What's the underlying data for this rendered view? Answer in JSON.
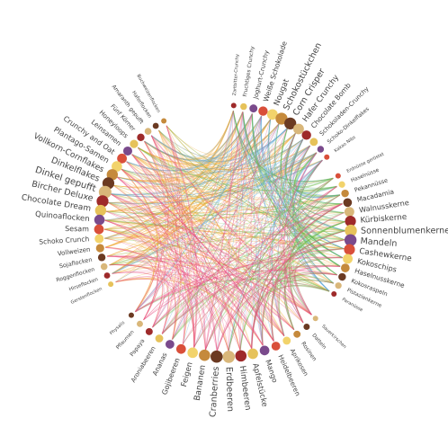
{
  "groups": [
    {
      "labels": [
        "Buchweizenflocken",
        "Haferflocken",
        "Amaranth gepufft",
        "Fünf Körner",
        "Honeyloops",
        "Leinsamen",
        "Crunchy and Oat",
        "Plantago-Samen",
        "Vollkorn-Cornflakes",
        "Dinkelflakes",
        "Dinkel gepufft",
        "Bircher Deluxe",
        "Chocolate Dream",
        "Quinoaflocken",
        "Sesam",
        "Schoko Crunch",
        "Vollweizen",
        "Sojaflocken",
        "Roggenflocken",
        "Hirseflocken",
        "Gerstenflocken"
      ]
    },
    {
      "labels": [
        "Zartbitter-Crunchy",
        "Fruchtiges Crunchy",
        "Joghurt-Crunchy",
        "Weiße Schokolade",
        "Nougat",
        "Schokostückchen",
        "Corn Crisper",
        "Hafer Crunchy",
        "Chocolate Bomb",
        "Schokoladen-Crunchy",
        "Schoko-Dinkelflakes",
        "Kakao Nibs"
      ]
    },
    {
      "labels": [
        "Erdnüsse geröstet",
        "Haselnüsse",
        "Pekannüsse",
        "Macadamia",
        "Walnusskerne",
        "Kürbiskerne",
        "Sonnenblumenkerne",
        "Mandeln",
        "Cashewkerne",
        "Kokoschips",
        "Haselnusskerne",
        "Kokosraspeln",
        "Pistazienkerne",
        "Paranüsse"
      ]
    },
    {
      "labels": [
        "Physalis",
        "Pflaumen",
        "Papaya",
        "Aroniabeeren",
        "Ananas",
        "Gojibeeren",
        "Feigen",
        "Bananen",
        "Cranberries",
        "Erdbeeren",
        "Himbeeren",
        "Apfelstücke",
        "Mango",
        "Heidelbeeren",
        "Aprikosen",
        "Rosinen",
        "Datteln",
        "Sauerkirschen"
      ]
    }
  ]
}
